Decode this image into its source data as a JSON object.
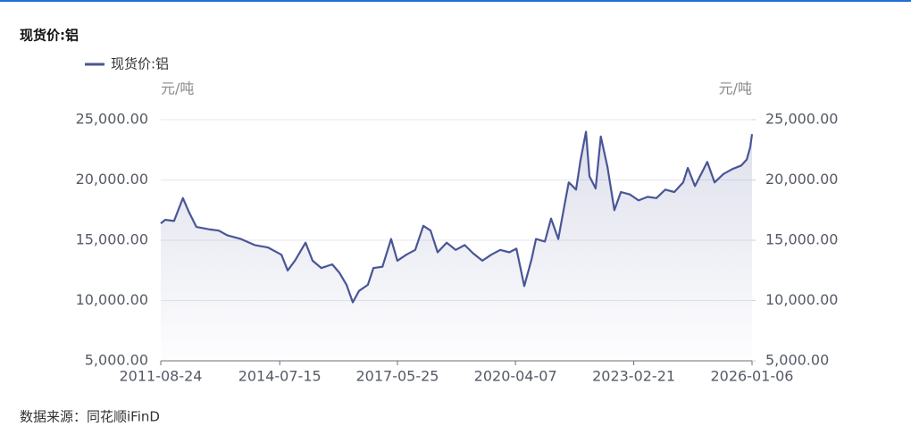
{
  "chart_data": {
    "type": "line",
    "title": "现货价:铝",
    "source": "数据来源：同花顺iFinD",
    "y_label": "元/吨",
    "y2_label": "元/吨",
    "x": [
      "2011-08-24",
      "2011-10-03",
      "2011-12-20",
      "2012-01-30",
      "2012-03-08",
      "2012-05-02",
      "2012-07-05",
      "2012-11-02",
      "2013-01-20",
      "2013-04-08",
      "2013-08-05",
      "2013-12-05",
      "2014-04-02",
      "2014-07-30",
      "2014-09-24",
      "2014-11-27",
      "2015-03-01",
      "2015-05-03",
      "2015-07-20",
      "2015-10-24",
      "2015-12-27",
      "2016-02-28",
      "2016-04-24",
      "2016-06-18",
      "2016-09-05",
      "2016-10-24",
      "2017-01-12",
      "2017-03-30",
      "2017-05-24",
      "2017-08-12",
      "2017-10-30",
      "2018-01-10",
      "2018-03-15",
      "2018-05-17",
      "2018-08-05",
      "2018-10-24",
      "2019-01-12",
      "2019-03-30",
      "2019-06-18",
      "2019-09-05",
      "2019-11-24",
      "2020-02-12",
      "2020-04-15",
      "2020-06-24",
      "2020-08-27",
      "2020-10-06",
      "2020-12-24",
      "2021-02-17",
      "2021-04-22",
      "2021-06-16",
      "2021-07-24",
      "2021-09-27",
      "2021-11-05",
      "2021-12-24",
      "2022-01-24",
      "2022-03-20",
      "2022-05-05",
      "2022-07-02",
      "2022-09-02",
      "2022-10-30",
      "2023-01-17",
      "2023-04-05",
      "2023-06-24",
      "2023-09-10",
      "2023-11-28",
      "2024-02-16",
      "2024-05-05",
      "2024-06-15",
      "2024-08-17",
      "2024-10-12",
      "2024-12-05",
      "2025-02-08",
      "2025-04-27",
      "2025-07-15",
      "2025-10-03",
      "2025-11-20",
      "2025-12-20",
      "2026-01-06"
    ],
    "series": [
      {
        "name": "现货价:铝",
        "color": "#4a5596",
        "values": [
          16400,
          16700,
          16600,
          17600,
          18500,
          17300,
          16100,
          15900,
          15800,
          15400,
          15100,
          14600,
          14400,
          13800,
          12500,
          13300,
          14800,
          13300,
          12700,
          13000,
          12300,
          11300,
          9850,
          10800,
          11300,
          12700,
          12800,
          15100,
          13300,
          13800,
          14200,
          16200,
          15800,
          14000,
          14800,
          14200,
          14600,
          13900,
          13300,
          13800,
          14200,
          14000,
          14300,
          11200,
          13400,
          15100,
          14900,
          16800,
          15100,
          17900,
          19800,
          19200,
          21600,
          24000,
          20300,
          19300,
          23600,
          21100,
          17500,
          19000,
          18800,
          18300,
          18600,
          18500,
          19200,
          19000,
          19800,
          21000,
          19500,
          20500,
          21500,
          19800,
          20500,
          20900,
          21200,
          21700,
          22700,
          23800
        ]
      }
    ],
    "xlim": [
      "2011-08-24",
      "2026-01-06"
    ],
    "xticks": [
      "2011-08-24",
      "2014-07-15",
      "2017-05-25",
      "2020-04-07",
      "2023-02-21",
      "2026-01-06"
    ],
    "ylim": [
      5000,
      25000
    ],
    "yticks": [
      {
        "value": 5000,
        "label": "5,000.00"
      },
      {
        "value": 10000,
        "label": "10,000.00"
      },
      {
        "value": 15000,
        "label": "15,000.00"
      },
      {
        "value": 20000,
        "label": "20,000.00"
      },
      {
        "value": 25000,
        "label": "25,000.00"
      }
    ],
    "y2lim": [
      5000,
      25000
    ],
    "y2ticks": [
      {
        "value": 5000,
        "label": "5,000.00"
      },
      {
        "value": 10000,
        "label": "10,000.00"
      },
      {
        "value": 15000,
        "label": "15,000.00"
      },
      {
        "value": 20000,
        "label": "20,000.00"
      },
      {
        "value": 25000,
        "label": "25,000.00"
      }
    ],
    "grid": true,
    "area": true,
    "legend": "top-left"
  }
}
